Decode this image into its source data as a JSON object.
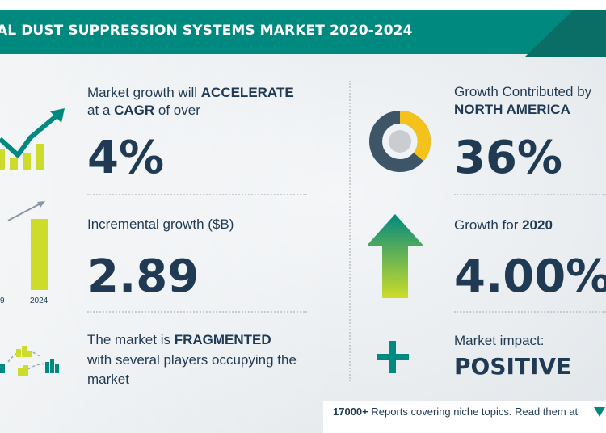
{
  "title": "AL DUST SUPPRESSION SYSTEMS MARKET 2020-2024",
  "cagr": {
    "line1_prefix": "Market growth will ",
    "line1_bold": "ACCELERATE",
    "line2_prefix": "at a ",
    "line2_bold": "CAGR",
    "line2_suffix": " of over",
    "value": "4%"
  },
  "incremental": {
    "label": "Incremental growth ($B)",
    "value": "2.89",
    "axis_left": "9",
    "axis_right": "2024"
  },
  "fragmented": {
    "line1_prefix": "The market is ",
    "line1_bold": "FRAGMENTED",
    "line2": "with several players occupying the",
    "line3": "market"
  },
  "region": {
    "label": "Growth Contributed by",
    "region_name": "NORTH AMERICA",
    "value": "36%",
    "share": 0.36
  },
  "growth_year": {
    "label_prefix": "Growth for ",
    "year": "2020",
    "value": "4.00%"
  },
  "impact": {
    "label": "Market impact:",
    "value": "POSITIVE"
  },
  "footer": {
    "count": "17000+",
    "text": " Reports covering niche topics. Read them at"
  },
  "colors": {
    "teal": "#00897f",
    "navy": "#1f3a52",
    "yellow": "#f5c21b",
    "lime": "#cddc2a",
    "donut_dark": "#3e5568"
  }
}
